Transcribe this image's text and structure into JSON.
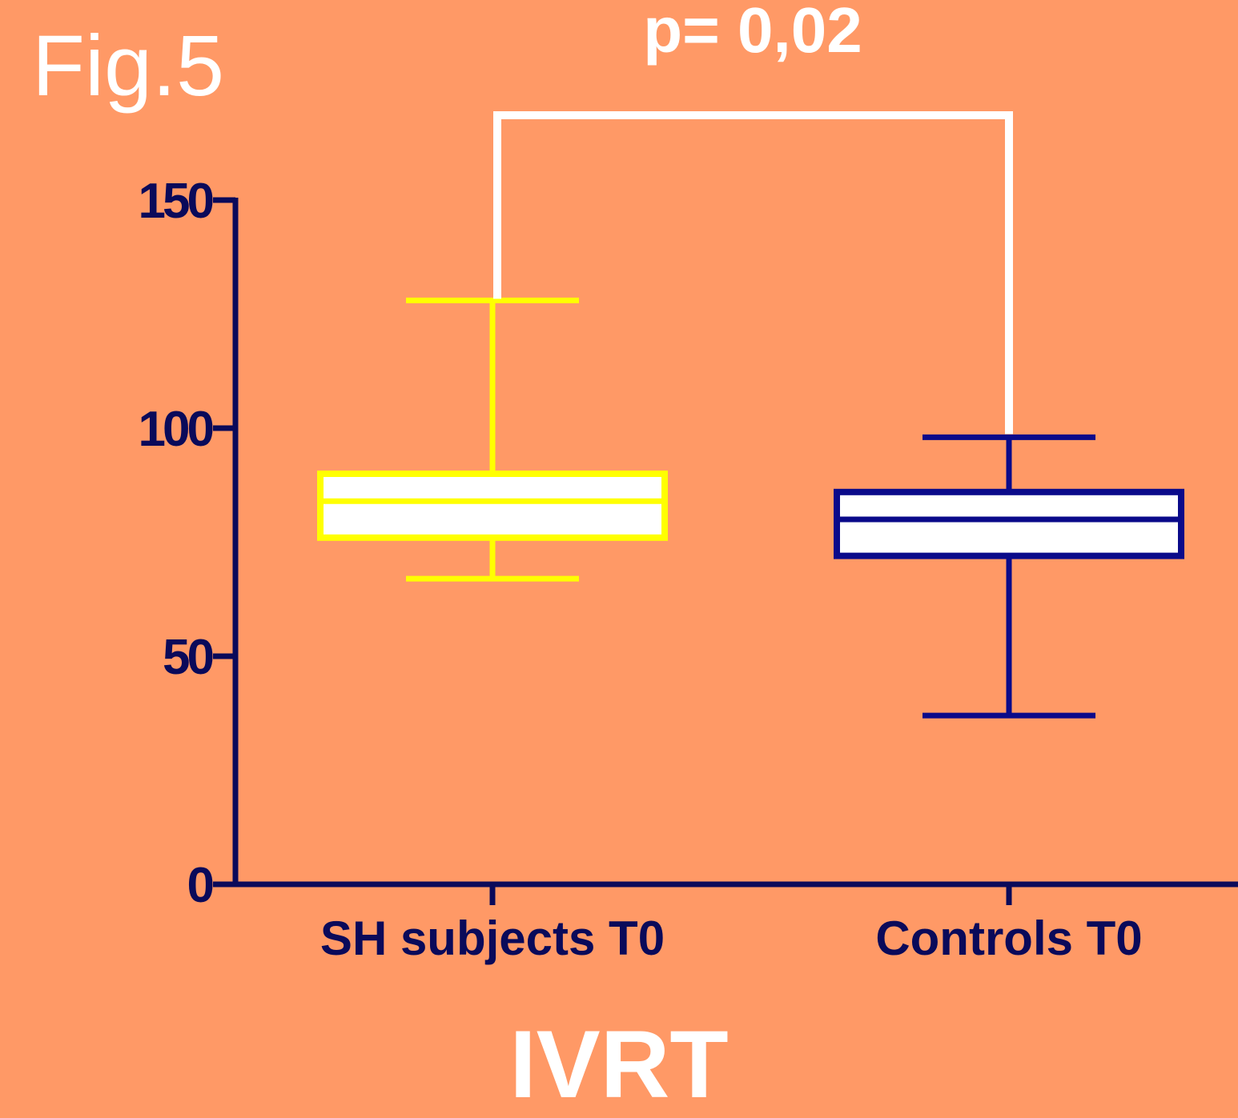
{
  "figure_label": "Fig.5",
  "annotation": "p= 0,02",
  "colors": {
    "background": "#FF9966",
    "axis": "#0A0A5A",
    "group1": "#FFFF00",
    "group2": "#0A0A8A",
    "box_fill": "#FFFFFF",
    "annotation": "#FFFFFF"
  },
  "chart_data": {
    "type": "box",
    "title": "IVRT",
    "xlabel": "",
    "ylabel": "",
    "ylim": [
      0,
      150
    ],
    "yticks": [
      0,
      50,
      100,
      150
    ],
    "grid": false,
    "categories": [
      "SH subjects T0",
      "Controls T0"
    ],
    "series": [
      {
        "min": 67,
        "q1": 76,
        "median": 84,
        "q3": 90,
        "max": 128
      },
      {
        "min": 37,
        "q1": 72,
        "median": 80,
        "q3": 86,
        "max": 98
      }
    ],
    "significance": {
      "between": [
        0,
        1
      ],
      "label": "p= 0,02"
    }
  }
}
